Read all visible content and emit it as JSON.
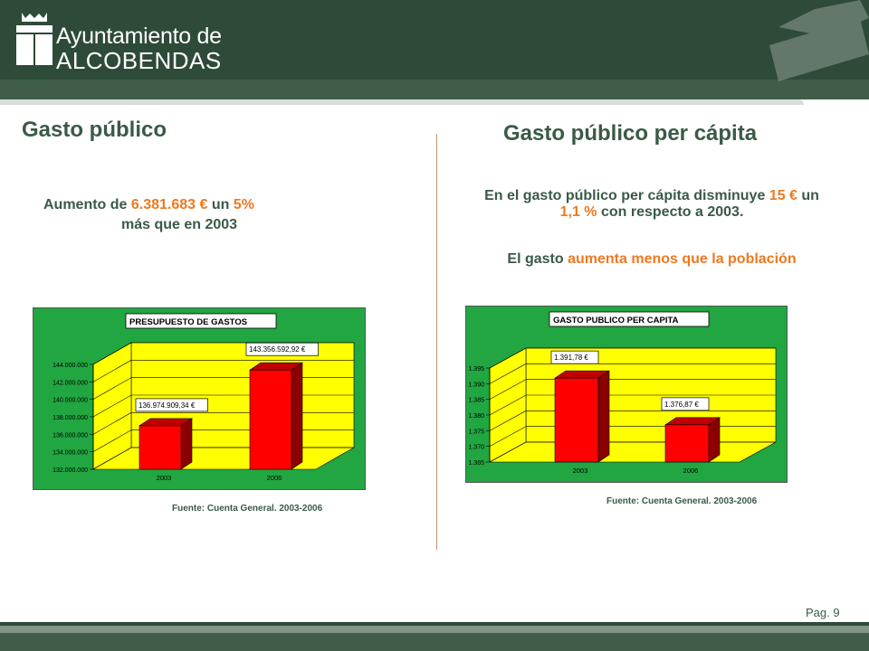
{
  "header": {
    "org_line1": "Ayuntamiento de",
    "org_line2": "ALCOBENDAS"
  },
  "left": {
    "title": "Gasto público",
    "desc_prefix": "Aumento de ",
    "desc_amount": "6.381.683 €",
    "desc_mid": " un ",
    "desc_pct": "5%",
    "desc_line2": "más que en 2003",
    "source": "Fuente: Cuenta General. 2003-2006"
  },
  "right": {
    "title": "Gasto público per cápita",
    "desc_prefix": "En el gasto público per cápita disminuye ",
    "desc_amount": "15 €",
    "desc_mid": " un ",
    "desc_pct": "1,1 %",
    "desc_suffix": " con respecto a 2003.",
    "desc2_prefix": "El gasto ",
    "desc2_highlight": "aumenta menos que la población",
    "source": "Fuente: Cuenta General. 2003-2006"
  },
  "footer": {
    "page": "Pag. 9"
  },
  "colors": {
    "header": "#2e4a38",
    "accent_orange": "#f07820",
    "title_green": "#3a5a46",
    "chart_bg": "#21a641",
    "plot_yellow": "#ffff00",
    "bar_red": "#ff0000"
  },
  "chart_data": [
    {
      "type": "bar",
      "title": "PRESUPUESTO DE GASTOS",
      "categories": [
        "2003",
        "2006"
      ],
      "values": [
        136974909.34,
        143356592.92
      ],
      "data_labels": [
        "136.974.909,34 €",
        "143.356.592,92 €"
      ],
      "ylim": [
        132000000,
        144000000
      ],
      "yticks": [
        132000000,
        134000000,
        136000000,
        138000000,
        140000000,
        142000000,
        144000000
      ],
      "ytick_labels": [
        "132.000.000",
        "134.000.000",
        "136.000.000",
        "138.000.000",
        "140.000.000",
        "142.000.000",
        "144.000.000"
      ],
      "grid": true
    },
    {
      "type": "bar",
      "title": "GASTO PUBLICO PER CAPITA",
      "categories": [
        "2003",
        "2006"
      ],
      "values": [
        1391.78,
        1376.87
      ],
      "data_labels": [
        "1.391,78 €",
        "1.376,87 €"
      ],
      "ylim": [
        1365,
        1395
      ],
      "yticks": [
        1365,
        1370,
        1375,
        1380,
        1385,
        1390,
        1395
      ],
      "ytick_labels": [
        "1.365",
        "1.370",
        "1.375",
        "1.380",
        "1.385",
        "1.390",
        "1.395"
      ],
      "grid": true
    }
  ]
}
